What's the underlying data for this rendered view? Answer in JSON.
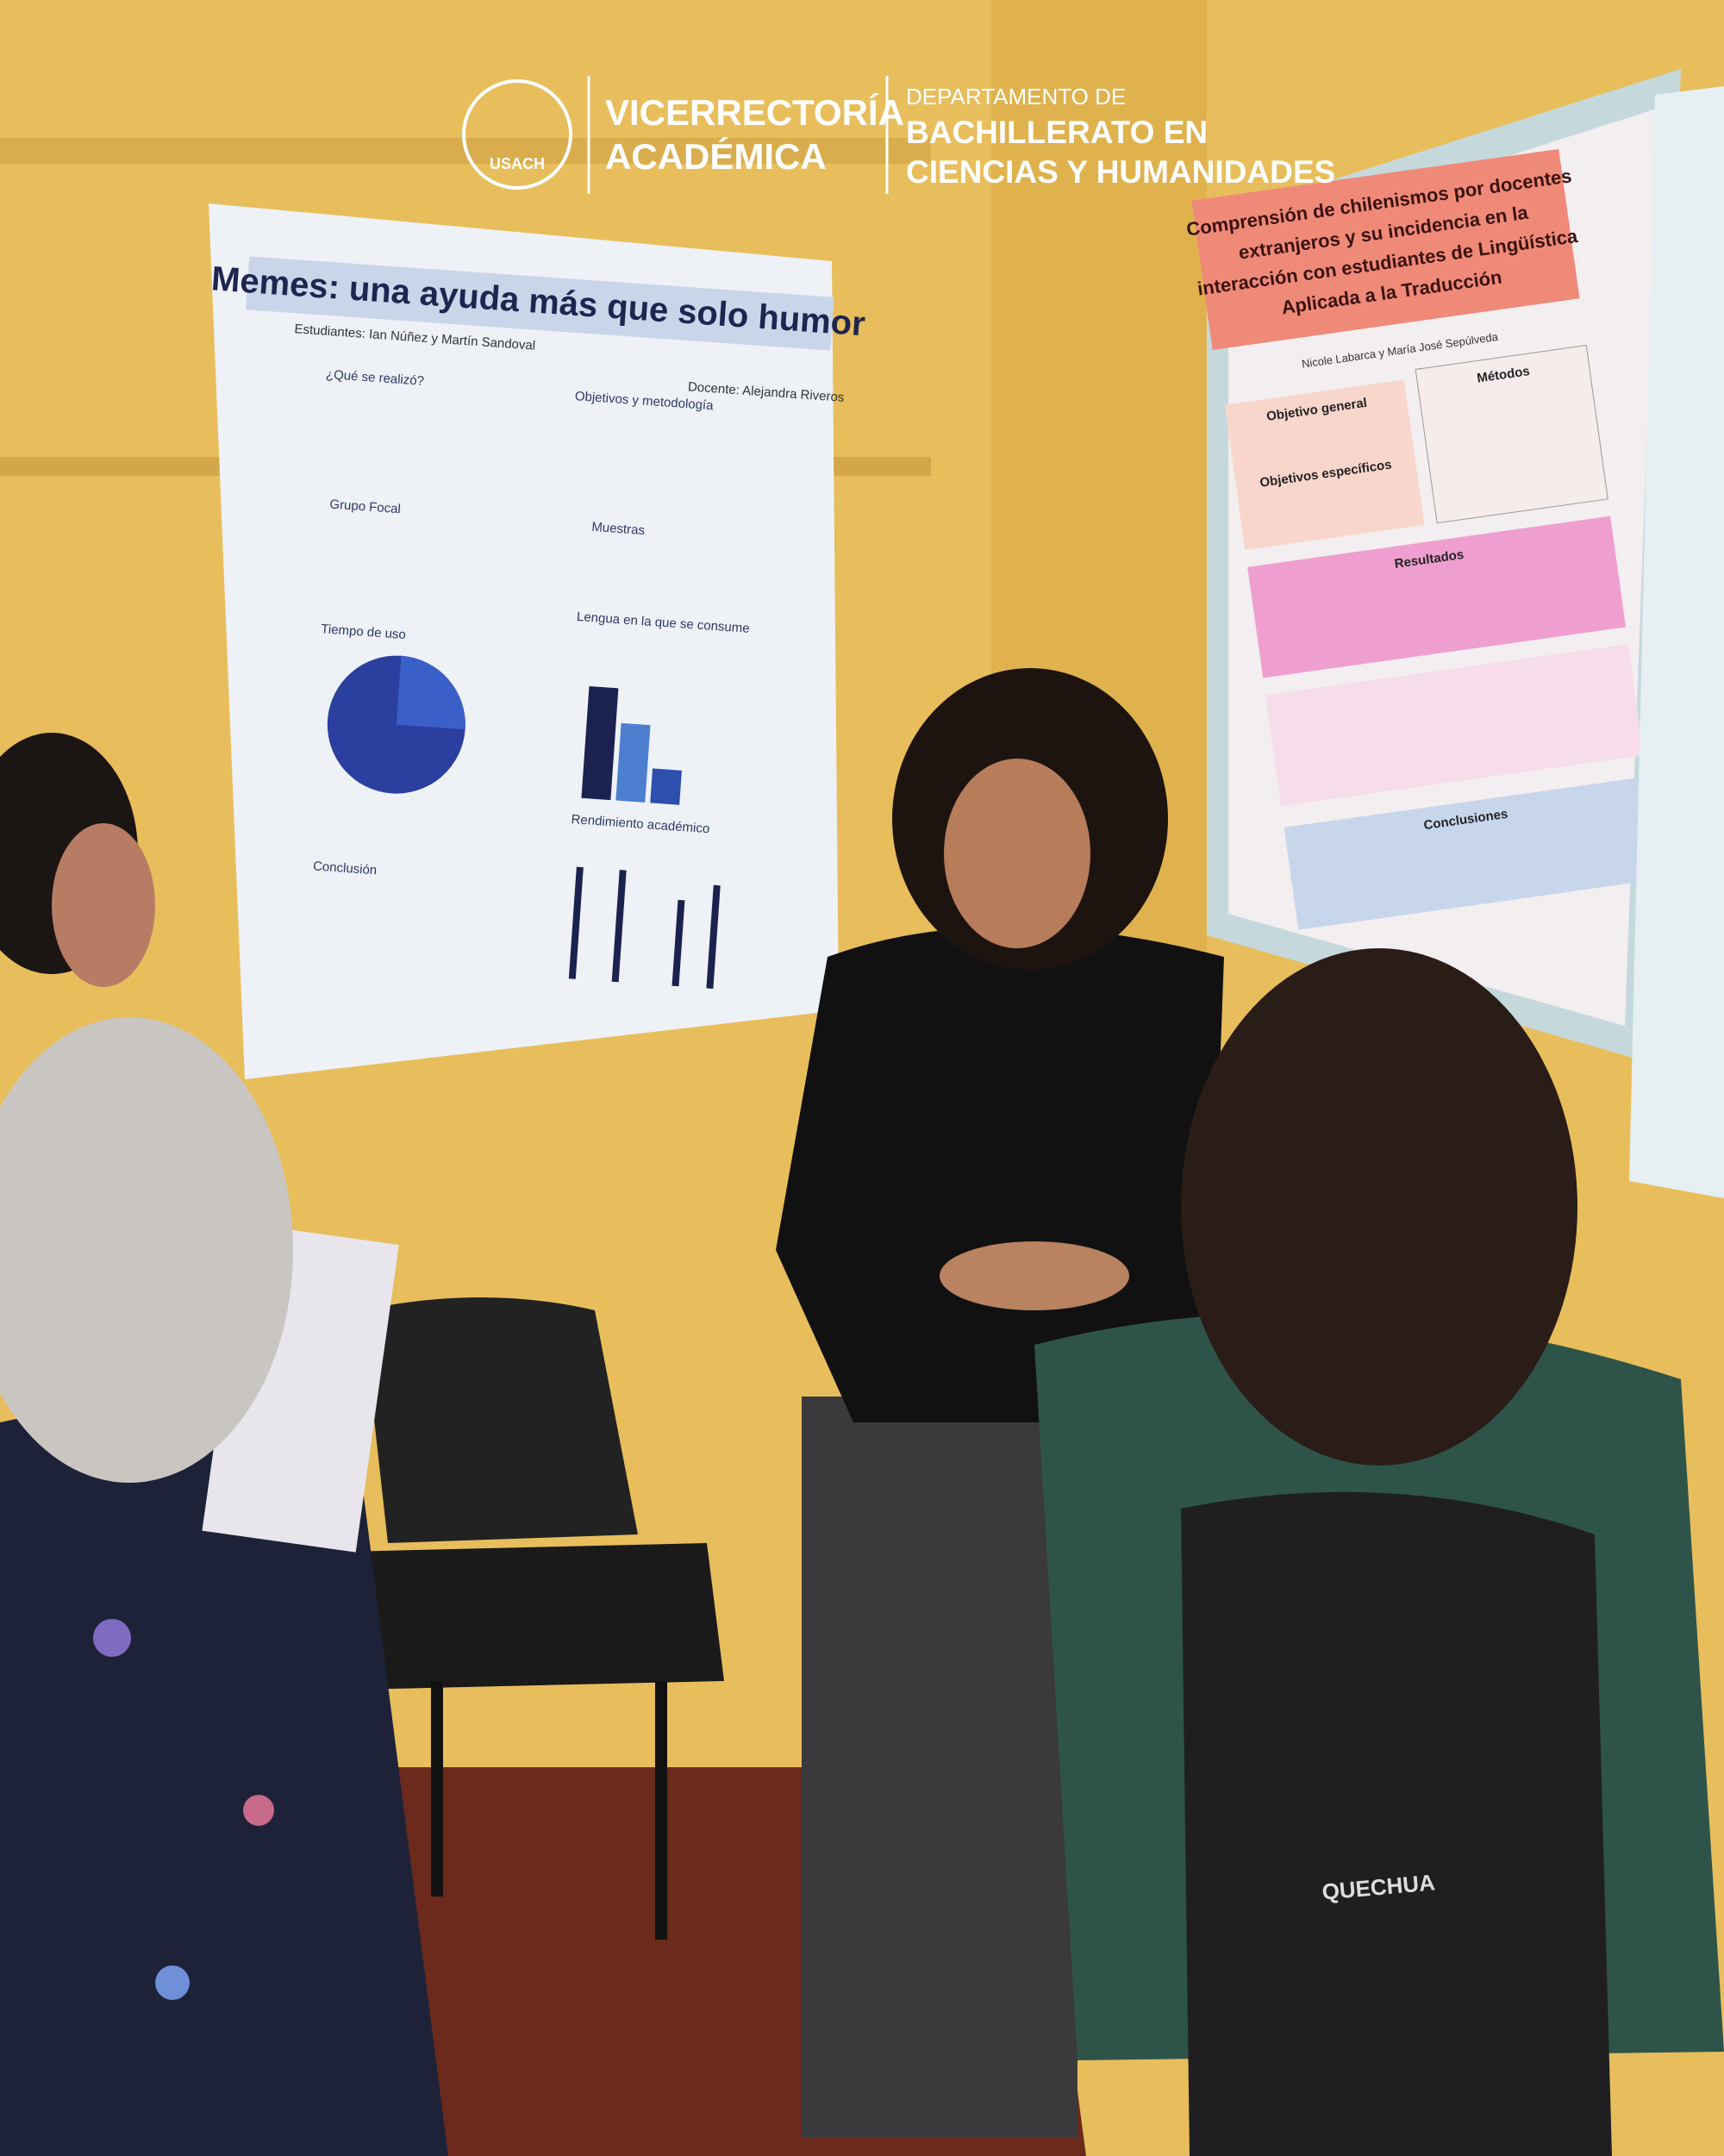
{
  "header": {
    "logo_text": "USACH",
    "unit": [
      "VICERRECTORÍA",
      "ACADÉMICA"
    ],
    "department_prefix": "DEPARTAMENTO DE",
    "department": [
      "BACHILLERATO EN",
      "CIENCIAS Y HUMANIDADES"
    ]
  },
  "poster_left": {
    "title": "Memes: una ayuda más que solo humor",
    "students": "Estudiantes: Ian Núñez y Martín Sandoval",
    "teacher": "Docente: Alejandra Riveros",
    "sections": [
      "¿Qué se realizó?",
      "Grupo Focal",
      "Tiempo de uso",
      "Conclusión",
      "Objetivos y metodología",
      "Muestras",
      "Lengua en la que se consume",
      "Rendimiento académico"
    ]
  },
  "poster_right": {
    "title": [
      "Comprensión de chilenismos por docentes",
      "extranjeros y su incidencia en la",
      "interacción con estudiantes de Lingüística",
      "Aplicada a la Traducción"
    ],
    "authors": "Nicole Labarca y María José Sepúlveda",
    "sections": [
      "Objetivo general",
      "Métodos",
      "Objetivos específicos",
      "Resultados",
      "Conclusiones"
    ]
  },
  "backpack_brand": "QUECHUA"
}
